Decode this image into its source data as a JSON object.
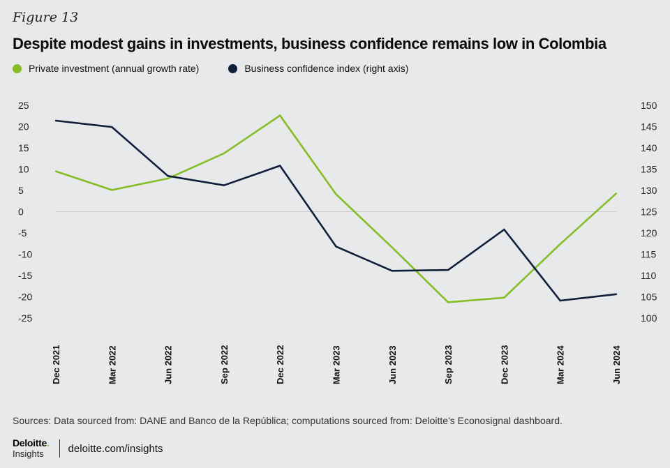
{
  "figure_label": "Figure 13",
  "title": "Despite modest gains in investments, business confidence remains low in Colombia",
  "colors": {
    "investment": "#86bc25",
    "confidence": "#0f1f3a",
    "background": "#e8e9eb"
  },
  "chart_data": {
    "type": "line",
    "categories": [
      "Dec 2021",
      "Mar 2022",
      "Jun 2022",
      "Sep 2022",
      "Dec 2022",
      "Mar 2023",
      "Jun 2023",
      "Sep 2023",
      "Dec 2023",
      "Mar 2024",
      "Jun 2024"
    ],
    "series": [
      {
        "name": "Private investment (annual growth rate)",
        "axis": "left",
        "values": [
          9.5,
          5.1,
          7.8,
          13.7,
          22.6,
          4.1,
          -8.4,
          -21.3,
          -20.2,
          -7.6,
          4.3
        ]
      },
      {
        "name": "Business confidence index (right axis)",
        "axis": "right",
        "values": [
          146.4,
          144.9,
          133.4,
          131.2,
          135.8,
          116.8,
          111.1,
          111.3,
          120.8,
          104.1,
          105.6
        ]
      }
    ],
    "y_left": {
      "min": -25,
      "max": 25,
      "ticks": [
        25,
        20,
        15,
        10,
        5,
        0,
        -5,
        -10,
        -15,
        -20,
        -25
      ]
    },
    "y_right": {
      "min": 100,
      "max": 150,
      "ticks": [
        150,
        145,
        140,
        135,
        130,
        125,
        120,
        115,
        110,
        105,
        100
      ]
    },
    "zero_line": true,
    "legend_position": "top-left"
  },
  "sources": "Sources: Data sourced from: DANE and Banco de la República; computations sourced from: Deloitte's Econosignal dashboard.",
  "footer": {
    "brand": "Deloitte",
    "brand_dot": ".",
    "brand_sub": "Insights",
    "link": "deloitte.com/insights"
  }
}
